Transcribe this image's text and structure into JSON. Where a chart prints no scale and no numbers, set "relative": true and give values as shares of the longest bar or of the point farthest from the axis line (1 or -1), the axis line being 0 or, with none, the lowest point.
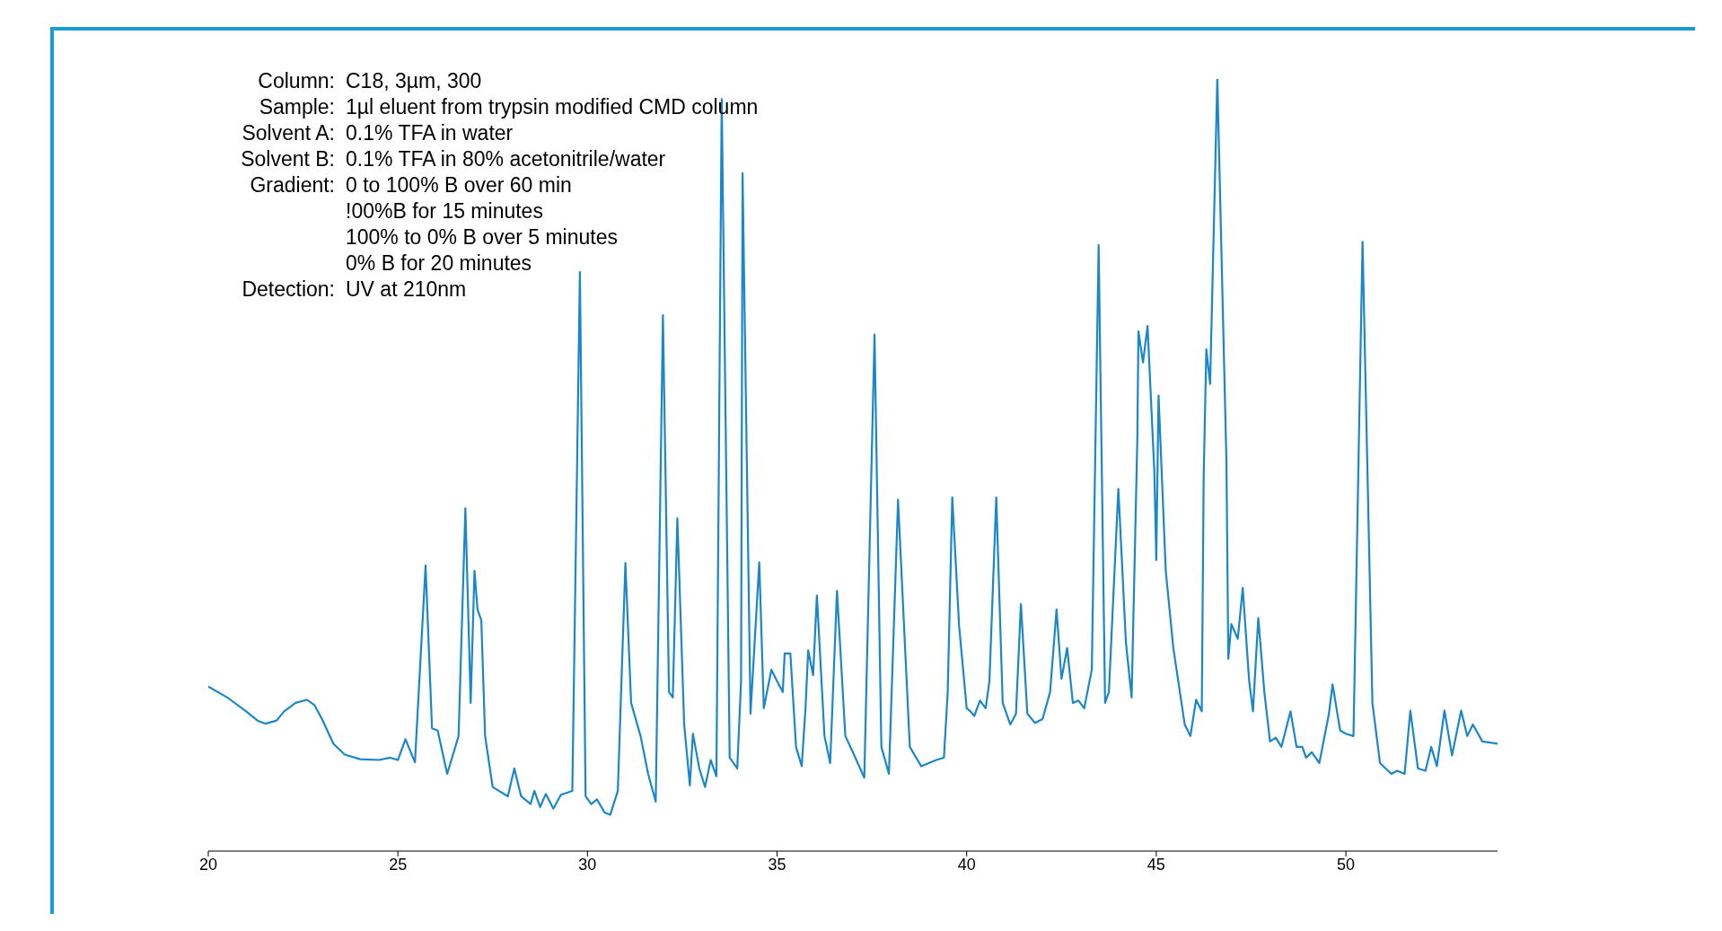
{
  "chart_data": {
    "type": "line",
    "relative": true,
    "color": "#1a87c9",
    "marker": "none",
    "line_style": "solid",
    "grid": false,
    "legend": false,
    "xlim": [
      20,
      54
    ],
    "xticks": [
      20,
      25,
      30,
      35,
      40,
      45,
      50
    ],
    "annotations": [
      "Column: C18, 3µm, 300",
      "Sample: 1µl eluent from trypsin modified CMD column",
      "Solvent A: 0.1% TFA in water",
      "Solvent B: 0.1% TFA in 80% acetonitrile/water",
      "Gradient: 0 to 100% B over 60 min",
      "!00%B for 15 minutes",
      "100% to 0% B over 5 minutes",
      "0% B for 20 minutes",
      "Detection: UV at 210nm"
    ],
    "x": [
      20,
      20.5,
      21,
      21.3,
      21.5,
      21.8,
      22,
      22.3,
      22.6,
      22.8,
      23,
      23.3,
      23.6,
      24,
      24.5,
      24.8,
      25,
      25.2,
      25.45,
      25.73,
      25.9,
      26.05,
      26.3,
      26.6,
      26.78,
      26.92,
      27.02,
      27.1,
      27.2,
      27.3,
      27.5,
      27.9,
      28.07,
      28.25,
      28.5,
      28.6,
      28.75,
      28.9,
      29.1,
      29.3,
      29.6,
      29.8,
      29.95,
      30.1,
      30.25,
      30.45,
      30.6,
      30.8,
      31,
      31.15,
      31.4,
      31.6,
      31.8,
      31.99,
      32.15,
      32.25,
      32.37,
      32.55,
      32.7,
      32.78,
      32.95,
      33.1,
      33.25,
      33.4,
      33.54,
      33.75,
      33.95,
      34.05,
      34.09,
      34.3,
      34.53,
      34.65,
      34.85,
      35,
      35.15,
      35.2,
      35.35,
      35.5,
      35.65,
      35.75,
      35.82,
      35.95,
      36.05,
      36.25,
      36.4,
      36.58,
      36.8,
      37,
      37.3,
      37.57,
      37.75,
      37.95,
      38.19,
      38.5,
      38.8,
      39.2,
      39.4,
      39.5,
      39.62,
      39.8,
      40,
      40.1,
      40.2,
      40.35,
      40.5,
      40.6,
      40.78,
      40.95,
      41.15,
      41.3,
      41.43,
      41.6,
      41.8,
      42,
      42.2,
      42.37,
      42.5,
      42.65,
      42.8,
      42.95,
      43.1,
      43.3,
      43.48,
      43.65,
      43.75,
      44,
      44.2,
      44.35,
      44.5,
      44.53,
      44.65,
      44.77,
      44.95,
      45,
      45.06,
      45.25,
      45.45,
      45.75,
      45.9,
      46.05,
      46.2,
      46.25,
      46.32,
      46.42,
      46.61,
      46.85,
      46.9,
      46.98,
      47.15,
      47.28,
      47.45,
      47.55,
      47.69,
      47.85,
      48,
      48.15,
      48.3,
      48.54,
      48.7,
      48.85,
      48.95,
      49.1,
      49.3,
      49.55,
      49.65,
      49.85,
      50,
      50.2,
      50.44,
      50.7,
      50.9,
      51.2,
      51.35,
      51.55,
      51.7,
      51.9,
      52.1,
      52.25,
      52.4,
      52.6,
      52.8,
      53.04,
      53.2,
      53.35,
      53.6,
      54
    ],
    "values": [
      0.213,
      0.199,
      0.181,
      0.169,
      0.165,
      0.169,
      0.181,
      0.192,
      0.196,
      0.189,
      0.171,
      0.139,
      0.125,
      0.119,
      0.118,
      0.121,
      0.118,
      0.145,
      0.115,
      0.37,
      0.159,
      0.156,
      0.1,
      0.149,
      0.444,
      0.192,
      0.363,
      0.313,
      0.299,
      0.149,
      0.083,
      0.071,
      0.107,
      0.071,
      0.061,
      0.078,
      0.057,
      0.074,
      0.055,
      0.073,
      0.078,
      0.75,
      0.071,
      0.061,
      0.067,
      0.05,
      0.047,
      0.078,
      0.373,
      0.192,
      0.149,
      0.1,
      0.064,
      0.694,
      0.206,
      0.199,
      0.431,
      0.164,
      0.085,
      0.152,
      0.107,
      0.083,
      0.118,
      0.097,
      0.974,
      0.121,
      0.107,
      0.22,
      0.878,
      0.178,
      0.374,
      0.185,
      0.235,
      0.22,
      0.206,
      0.256,
      0.256,
      0.135,
      0.11,
      0.185,
      0.26,
      0.228,
      0.331,
      0.149,
      0.114,
      0.337,
      0.149,
      0.128,
      0.095,
      0.669,
      0.135,
      0.1,
      0.455,
      0.135,
      0.11,
      0.118,
      0.121,
      0.206,
      0.458,
      0.292,
      0.185,
      0.181,
      0.175,
      0.195,
      0.185,
      0.22,
      0.458,
      0.192,
      0.164,
      0.178,
      0.32,
      0.178,
      0.166,
      0.171,
      0.206,
      0.313,
      0.223,
      0.263,
      0.192,
      0.195,
      0.185,
      0.235,
      0.785,
      0.192,
      0.206,
      0.469,
      0.27,
      0.199,
      0.533,
      0.673,
      0.633,
      0.68,
      0.491,
      0.377,
      0.59,
      0.363,
      0.263,
      0.164,
      0.149,
      0.196,
      0.181,
      0.484,
      0.65,
      0.605,
      1,
      0.505,
      0.249,
      0.294,
      0.275,
      0.341,
      0.22,
      0.181,
      0.302,
      0.206,
      0.142,
      0.147,
      0.135,
      0.181,
      0.135,
      0.135,
      0.121,
      0.128,
      0.114,
      0.177,
      0.216,
      0.156,
      0.152,
      0.149,
      0.789,
      0.192,
      0.114,
      0.1,
      0.104,
      0.1,
      0.182,
      0.107,
      0.104,
      0.135,
      0.11,
      0.182,
      0.124,
      0.182,
      0.149,
      0.164,
      0.142,
      0.139
    ]
  }
}
